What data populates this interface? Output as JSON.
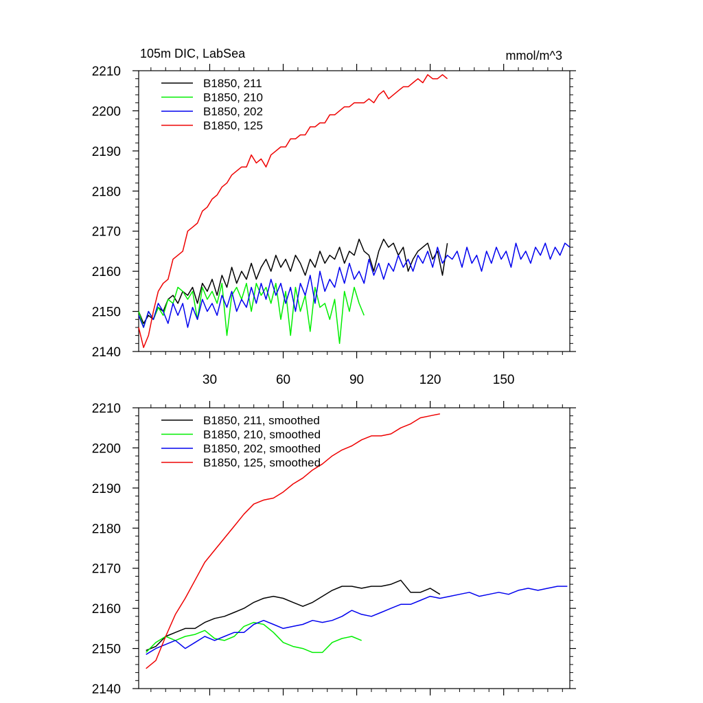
{
  "chart_data": [
    {
      "type": "line",
      "title": "105m DIC, LabSea",
      "units": "mmol/m^3",
      "xlim": [
        1,
        177
      ],
      "ylim": [
        2140,
        2210
      ],
      "xticks": [
        30,
        60,
        90,
        120,
        150
      ],
      "yticks": [
        2140,
        2150,
        2160,
        2170,
        2180,
        2190,
        2200,
        2210
      ],
      "show_x_labels": true,
      "legend_position": "top-left",
      "series": [
        {
          "name": "B1850, 211",
          "color": "#000000",
          "x": [
            1,
            3,
            5,
            7,
            9,
            11,
            13,
            15,
            17,
            19,
            21,
            23,
            25,
            27,
            29,
            31,
            33,
            35,
            37,
            39,
            41,
            43,
            45,
            47,
            49,
            51,
            53,
            55,
            57,
            59,
            61,
            63,
            65,
            67,
            69,
            71,
            73,
            75,
            77,
            79,
            81,
            83,
            85,
            87,
            89,
            91,
            93,
            95,
            97,
            99,
            101,
            103,
            105,
            107,
            109,
            111,
            113,
            115,
            117,
            119,
            121,
            123,
            125,
            127
          ],
          "y": [
            2150,
            2147,
            2149,
            2148,
            2151,
            2150,
            2153,
            2154,
            2152,
            2155,
            2154,
            2156,
            2152,
            2157,
            2155,
            2158,
            2154,
            2159,
            2156,
            2161,
            2157,
            2160,
            2158,
            2162,
            2158,
            2161,
            2163,
            2160,
            2164,
            2161,
            2163,
            2160,
            2164,
            2162,
            2159,
            2163,
            2161,
            2165,
            2162,
            2164,
            2163,
            2166,
            2162,
            2165,
            2164,
            2168,
            2165,
            2164,
            2160,
            2165,
            2168,
            2166,
            2167,
            2164,
            2166,
            2160,
            2163,
            2165,
            2166,
            2167,
            2163,
            2165,
            2159,
            2167
          ]
        },
        {
          "name": "B1850, 210",
          "color": "#00ee00",
          "x": [
            1,
            3,
            5,
            7,
            9,
            11,
            13,
            15,
            17,
            19,
            21,
            23,
            25,
            27,
            29,
            31,
            33,
            35,
            37,
            39,
            41,
            43,
            45,
            47,
            49,
            51,
            53,
            55,
            57,
            59,
            61,
            63,
            65,
            67,
            69,
            71,
            73,
            75,
            77,
            79,
            81,
            83,
            85,
            87,
            89,
            91,
            93
          ],
          "y": [
            2150,
            2146,
            2150,
            2148,
            2151,
            2149,
            2153,
            2152,
            2156,
            2155,
            2153,
            2155,
            2148,
            2156,
            2153,
            2155,
            2152,
            2157,
            2144,
            2154,
            2156,
            2153,
            2157,
            2150,
            2157,
            2154,
            2156,
            2152,
            2157,
            2148,
            2155,
            2144,
            2156,
            2150,
            2154,
            2145,
            2156,
            2151,
            2152,
            2148,
            2153,
            2142,
            2155,
            2150,
            2156,
            2152,
            2149
          ]
        },
        {
          "name": "B1850, 202",
          "color": "#0000ee",
          "x": [
            1,
            3,
            5,
            7,
            9,
            11,
            13,
            15,
            17,
            19,
            21,
            23,
            25,
            27,
            29,
            31,
            33,
            35,
            37,
            39,
            41,
            43,
            45,
            47,
            49,
            51,
            53,
            55,
            57,
            59,
            61,
            63,
            65,
            67,
            69,
            71,
            73,
            75,
            77,
            79,
            81,
            83,
            85,
            87,
            89,
            91,
            93,
            95,
            97,
            99,
            101,
            103,
            105,
            107,
            109,
            111,
            113,
            115,
            117,
            119,
            121,
            123,
            125,
            127,
            129,
            131,
            133,
            135,
            137,
            139,
            141,
            143,
            145,
            147,
            149,
            151,
            153,
            155,
            157,
            159,
            161,
            163,
            165,
            167,
            169,
            171,
            173,
            175,
            177
          ],
          "y": [
            2149,
            2146,
            2150,
            2148,
            2152,
            2150,
            2147,
            2152,
            2149,
            2152,
            2146,
            2151,
            2148,
            2153,
            2150,
            2152,
            2149,
            2154,
            2151,
            2155,
            2150,
            2153,
            2151,
            2156,
            2152,
            2157,
            2153,
            2158,
            2154,
            2157,
            2152,
            2156,
            2150,
            2157,
            2154,
            2159,
            2152,
            2160,
            2155,
            2158,
            2156,
            2161,
            2157,
            2162,
            2158,
            2160,
            2157,
            2163,
            2159,
            2162,
            2158,
            2162,
            2160,
            2164,
            2161,
            2163,
            2160,
            2164,
            2162,
            2165,
            2161,
            2166,
            2162,
            2164,
            2163,
            2165,
            2161,
            2166,
            2162,
            2164,
            2160,
            2165,
            2162,
            2166,
            2163,
            2165,
            2161,
            2167,
            2163,
            2165,
            2162,
            2166,
            2164,
            2167,
            2163,
            2166,
            2164,
            2167,
            2166
          ]
        },
        {
          "name": "B1850, 125",
          "color": "#ee0000",
          "x": [
            1,
            3,
            5,
            7,
            9,
            11,
            13,
            15,
            17,
            19,
            21,
            23,
            25,
            27,
            29,
            31,
            33,
            35,
            37,
            39,
            41,
            43,
            45,
            47,
            49,
            51,
            53,
            55,
            57,
            59,
            61,
            63,
            65,
            67,
            69,
            71,
            73,
            75,
            77,
            79,
            81,
            83,
            85,
            87,
            89,
            91,
            93,
            95,
            97,
            99,
            101,
            103,
            105,
            107,
            109,
            111,
            113,
            115,
            117,
            119,
            121,
            123,
            125,
            127
          ],
          "y": [
            2146,
            2141,
            2144,
            2150,
            2155,
            2157,
            2158,
            2163,
            2164,
            2165,
            2170,
            2171,
            2172,
            2175,
            2176,
            2178,
            2179,
            2181,
            2182,
            2184,
            2185,
            2186,
            2186,
            2189,
            2187,
            2188,
            2186,
            2189,
            2190,
            2191,
            2191,
            2193,
            2193,
            2194,
            2194,
            2196,
            2196,
            2197,
            2197,
            2199,
            2199,
            2200,
            2201,
            2201,
            2202,
            2202,
            2202,
            2203,
            2202,
            2204,
            2205,
            2203,
            2204,
            2205,
            2206,
            2206,
            2207,
            2208,
            2207,
            2209,
            2208,
            2208,
            2209,
            2208
          ]
        }
      ]
    },
    {
      "type": "line",
      "title": "",
      "units": "",
      "xlim": [
        1,
        177
      ],
      "ylim": [
        2140,
        2210
      ],
      "xticks": [
        30,
        60,
        90,
        120,
        150
      ],
      "yticks": [
        2140,
        2150,
        2160,
        2170,
        2180,
        2190,
        2200,
        2210
      ],
      "show_x_labels": false,
      "legend_position": "top-left",
      "series": [
        {
          "name": "B1850, 211, smoothed",
          "color": "#000000",
          "x": [
            4,
            8,
            12,
            16,
            20,
            24,
            28,
            32,
            36,
            40,
            44,
            48,
            52,
            56,
            60,
            64,
            68,
            72,
            76,
            80,
            84,
            88,
            92,
            96,
            100,
            104,
            108,
            112,
            116,
            120,
            124
          ],
          "y": [
            2149.5,
            2150.5,
            2153,
            2154,
            2155,
            2155,
            2156.5,
            2157.5,
            2158,
            2159,
            2160,
            2161.5,
            2162.5,
            2163,
            2162.5,
            2161.5,
            2160.5,
            2161.5,
            2163,
            2164.5,
            2165.5,
            2165.5,
            2165,
            2165.5,
            2165.5,
            2166,
            2167,
            2164,
            2164,
            2165,
            2163.5
          ]
        },
        {
          "name": "B1850, 210, smoothed",
          "color": "#00ee00",
          "x": [
            4,
            8,
            12,
            16,
            20,
            24,
            28,
            32,
            36,
            40,
            44,
            48,
            52,
            56,
            60,
            64,
            68,
            72,
            76,
            80,
            84,
            88,
            92
          ],
          "y": [
            2149,
            2151.5,
            2153,
            2152,
            2153,
            2153.5,
            2154.5,
            2152.5,
            2152,
            2153,
            2155.5,
            2156.5,
            2156,
            2154,
            2151.5,
            2150.5,
            2150,
            2149,
            2149,
            2151.5,
            2152.5,
            2153,
            2152
          ]
        },
        {
          "name": "B1850, 202, smoothed",
          "color": "#0000ee",
          "x": [
            4,
            8,
            12,
            16,
            20,
            24,
            28,
            32,
            36,
            40,
            44,
            48,
            52,
            56,
            60,
            64,
            68,
            72,
            76,
            80,
            84,
            88,
            92,
            96,
            100,
            104,
            108,
            112,
            116,
            120,
            124,
            128,
            132,
            136,
            140,
            144,
            148,
            152,
            156,
            160,
            164,
            168,
            172,
            176
          ],
          "y": [
            2148.5,
            2150,
            2151,
            2152,
            2150,
            2151.5,
            2153,
            2152,
            2153,
            2154,
            2154,
            2156,
            2157,
            2156,
            2155,
            2155.5,
            2156,
            2157,
            2156.5,
            2157,
            2158,
            2159.5,
            2158.5,
            2158,
            2159,
            2160,
            2161,
            2161,
            2162,
            2163,
            2162.5,
            2163,
            2163.5,
            2164,
            2163,
            2163.5,
            2164,
            2163.5,
            2164.5,
            2165,
            2164.5,
            2165,
            2165.5,
            2165.5
          ]
        },
        {
          "name": "B1850, 125, smoothed",
          "color": "#ee0000",
          "x": [
            4,
            8,
            12,
            16,
            20,
            24,
            28,
            32,
            36,
            40,
            44,
            48,
            52,
            56,
            60,
            64,
            68,
            72,
            76,
            80,
            84,
            88,
            92,
            96,
            100,
            104,
            108,
            112,
            116,
            120,
            124
          ],
          "y": [
            2145,
            2147,
            2153,
            2158.5,
            2162.5,
            2167,
            2171.5,
            2174.5,
            2177.5,
            2180.5,
            2183.5,
            2186,
            2187,
            2187.5,
            2189,
            2191,
            2192.5,
            2194.5,
            2196,
            2198,
            2199.5,
            2200.5,
            2202,
            2203,
            2203,
            2203.5,
            2205,
            2206,
            2207.5,
            2208,
            2208.5
          ]
        }
      ]
    }
  ]
}
